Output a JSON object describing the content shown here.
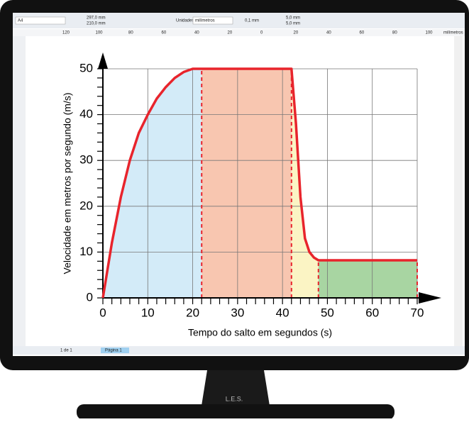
{
  "ui": {
    "page_size": "A4",
    "width": "297,0 mm",
    "height": "210,0 mm",
    "units_label": "Unidades:",
    "units": "milímetros",
    "nudge": "0,1 mm",
    "dup_x": "5,0 mm",
    "dup_y": "5,0 mm",
    "page_count": "1 de 1",
    "page_tab": "Página 1",
    "ruler": [
      "120",
      "100",
      "80",
      "60",
      "40",
      "20",
      "0",
      "20",
      "40",
      "60",
      "80",
      "100"
    ],
    "ruler_unit": "milímetros",
    "brand": "L.E.S."
  },
  "chart_data": {
    "type": "line",
    "x_label": "Tempo do salto em segundos (s)",
    "y_label": "Velocidade em metros por segundo (m/s)",
    "x": [
      0,
      2,
      4,
      6,
      8,
      10,
      12,
      14,
      16,
      18,
      20,
      22,
      42,
      43,
      44,
      45,
      46,
      47,
      48,
      70
    ],
    "values": [
      0,
      12,
      22,
      30,
      36,
      40,
      43.5,
      46,
      48,
      49.3,
      50,
      50,
      50,
      38,
      22,
      13,
      10,
      8.8,
      8.2,
      8.2
    ],
    "color": "#e8242c",
    "regions": [
      {
        "from": 0,
        "to": 22,
        "color": "#d3ebf8"
      },
      {
        "from": 22,
        "to": 42,
        "color": "#f8c6b0"
      },
      {
        "from": 42,
        "to": 48,
        "color": "#fbf4c4"
      },
      {
        "from": 48,
        "to": 70,
        "color": "#a8d5a2"
      }
    ],
    "xlim": [
      0,
      70
    ],
    "ylim": [
      0,
      50
    ],
    "xticks": [
      0,
      10,
      20,
      30,
      40,
      50,
      60,
      70
    ],
    "yticks": [
      0,
      10,
      20,
      30,
      40,
      50
    ],
    "minor_tick_step": 2,
    "grid": true
  }
}
